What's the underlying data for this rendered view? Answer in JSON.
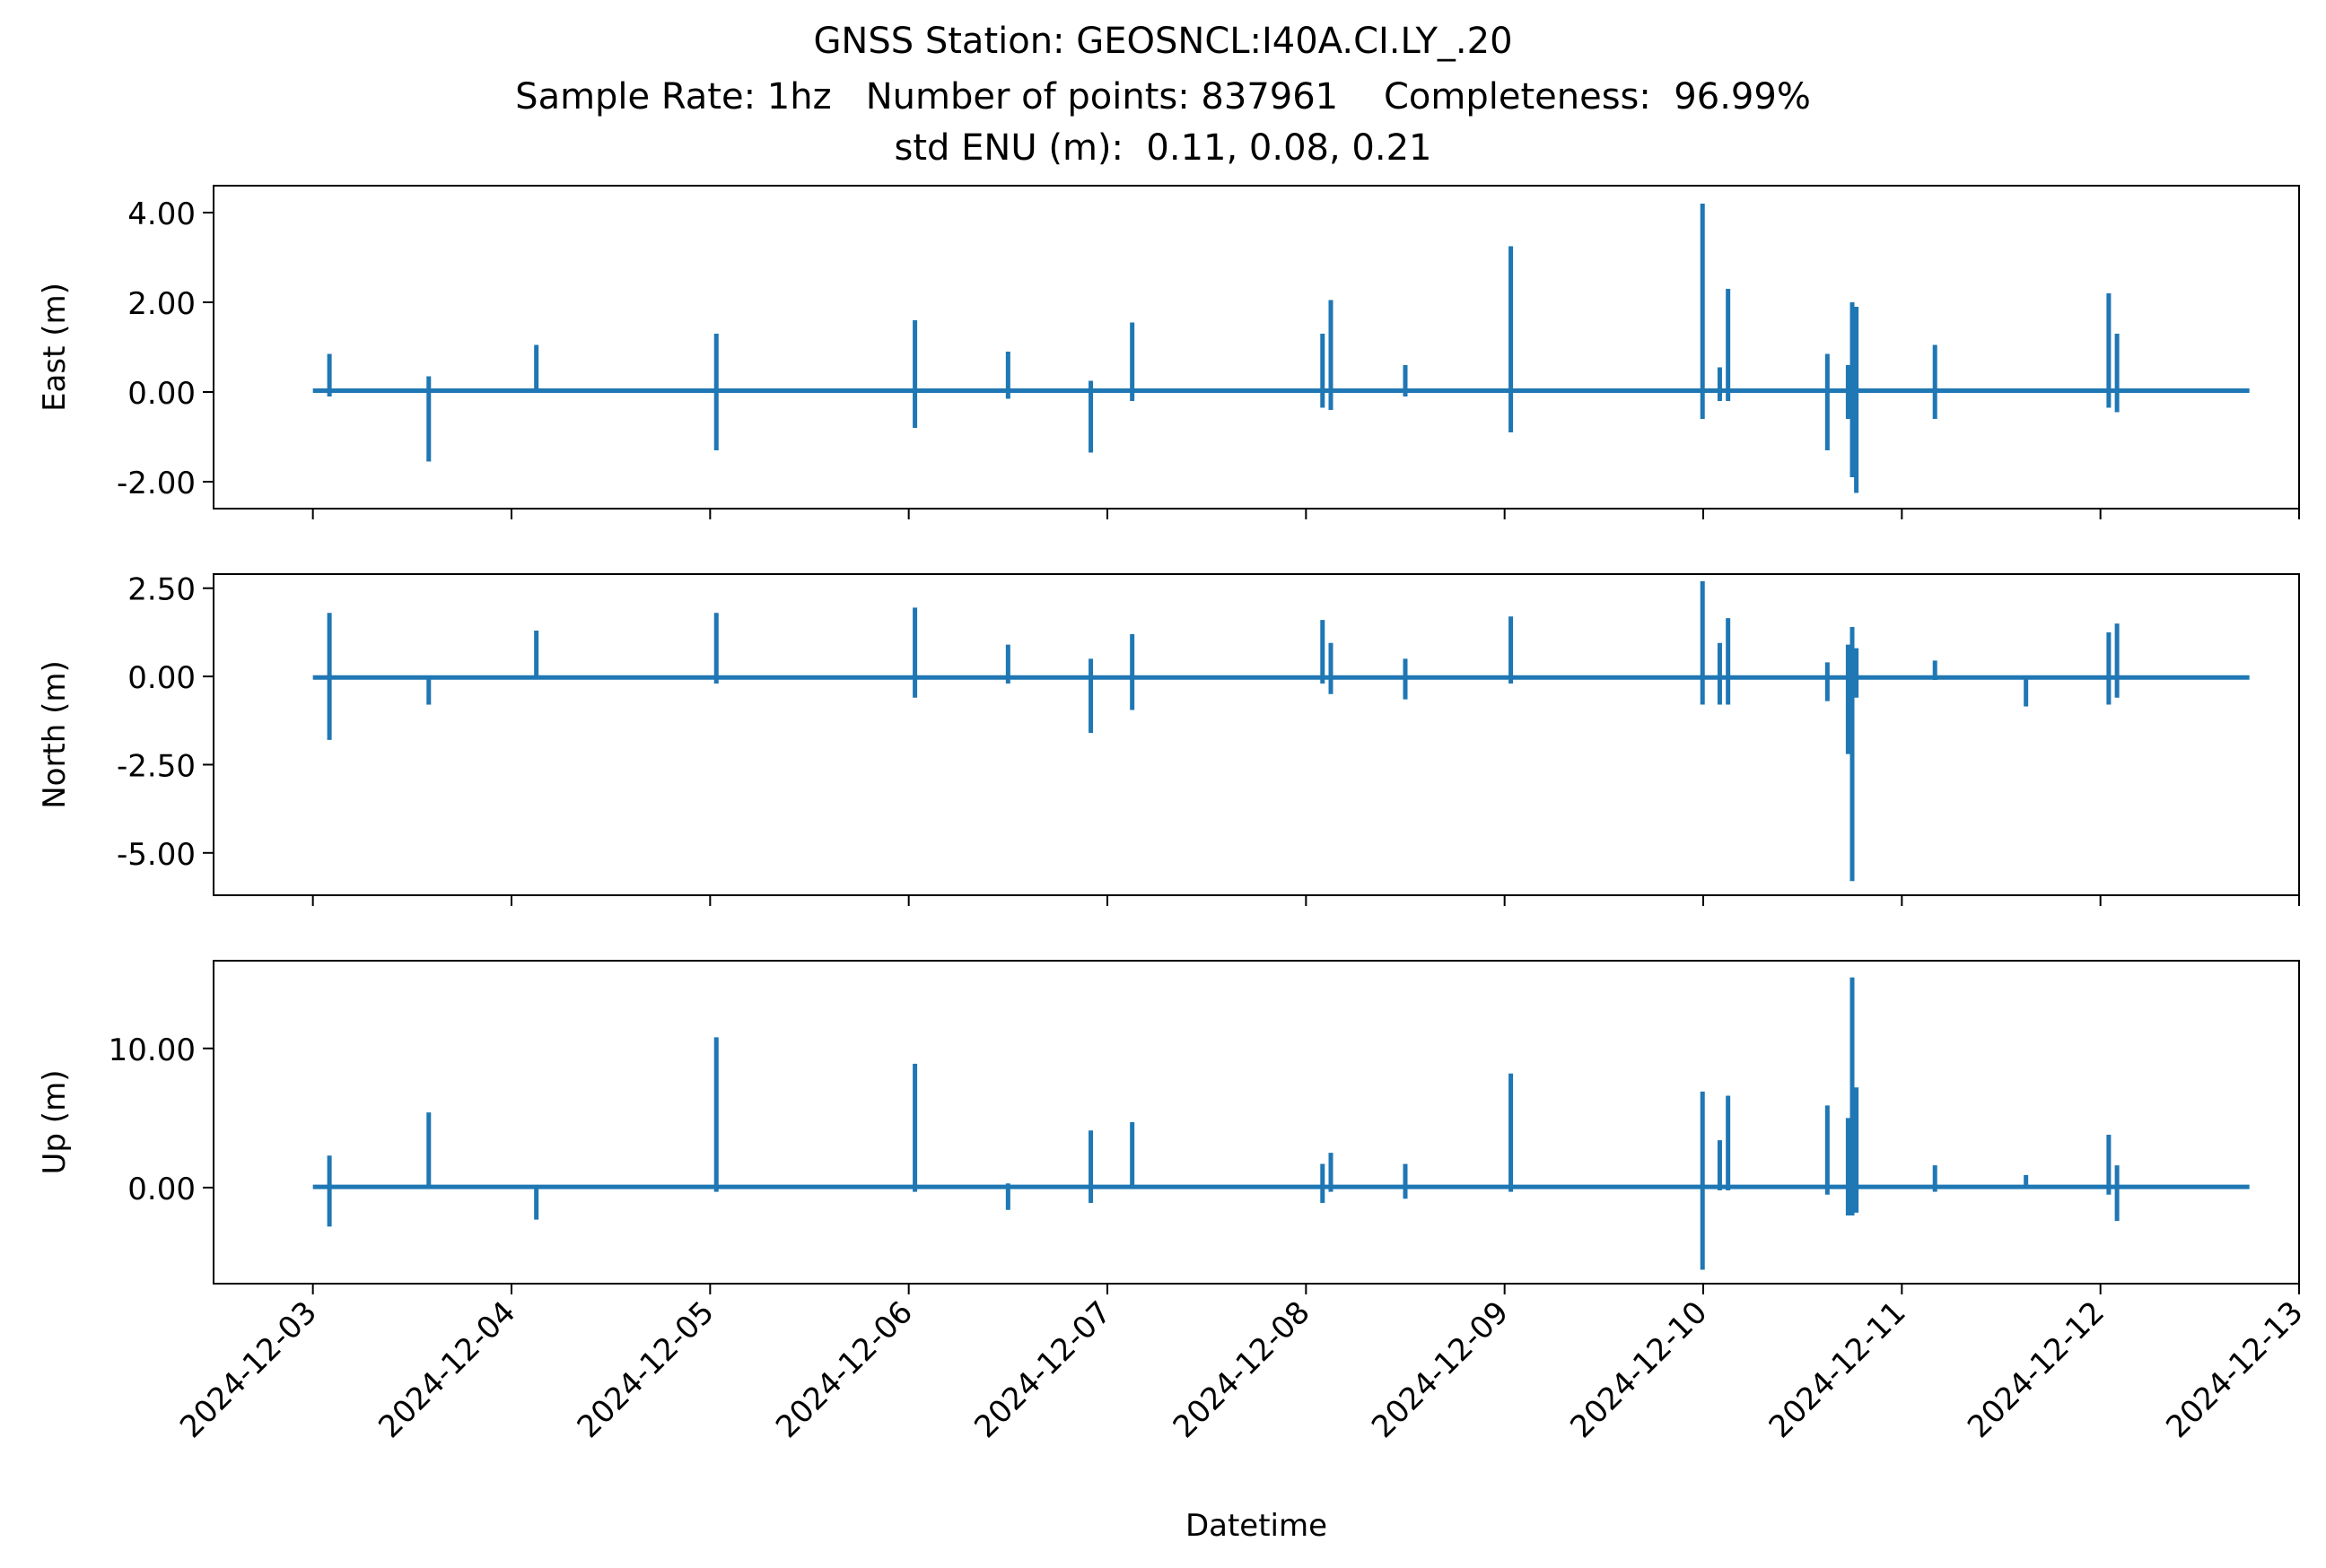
{
  "title": {
    "line1": "GNSS Station: GEOSNCL:I40A.CI.LY_.20",
    "line2": "Sample Rate: 1hz   Number of points: 837961    Completeness:  96.99%",
    "line3": "std ENU (m):  0.11, 0.08, 0.21"
  },
  "colors": {
    "series": "#1f77b4",
    "axes": "#000000",
    "background": "#ffffff"
  },
  "chart_data": [
    {
      "type": "line",
      "ylabel": "East (m)",
      "xlabel": "",
      "xlim": [
        "2024-12-02T12:00",
        "2024-12-13T00:00"
      ],
      "ylim": [
        -2.6,
        4.6
      ],
      "yticks": [
        4.0,
        2.0,
        0.0,
        -2.0
      ],
      "ytick_labels": [
        "4.00",
        "2.00",
        "0.00",
        "-2.00"
      ],
      "xticks": [
        "2024-12-03",
        "2024-12-04",
        "2024-12-05",
        "2024-12-06",
        "2024-12-07",
        "2024-12-08",
        "2024-12-09",
        "2024-12-10",
        "2024-12-11",
        "2024-12-12",
        "2024-12-13"
      ],
      "xtick_labels_shown": false,
      "baseline": 0.03,
      "time_start": "2024-12-03T00:00",
      "time_end": "2024-12-12T18:00",
      "spikes": [
        {
          "t": "2024-12-03T02:00",
          "min": -0.1,
          "max": 0.85
        },
        {
          "t": "2024-12-03T14:00",
          "min": -1.55,
          "max": 0.35
        },
        {
          "t": "2024-12-04T03:00",
          "min": 0.0,
          "max": 1.05
        },
        {
          "t": "2024-12-05T00:45",
          "min": -1.3,
          "max": 1.3
        },
        {
          "t": "2024-12-06T00:45",
          "min": -0.8,
          "max": 1.6
        },
        {
          "t": "2024-12-06T12:00",
          "min": -0.15,
          "max": 0.9
        },
        {
          "t": "2024-12-06T22:00",
          "min": -1.35,
          "max": 0.25
        },
        {
          "t": "2024-12-07T03:00",
          "min": -0.2,
          "max": 1.55
        },
        {
          "t": "2024-12-08T02:00",
          "min": -0.35,
          "max": 1.3
        },
        {
          "t": "2024-12-08T03:00",
          "min": -0.4,
          "max": 2.05
        },
        {
          "t": "2024-12-08T12:00",
          "min": -0.1,
          "max": 0.6
        },
        {
          "t": "2024-12-09T00:45",
          "min": -0.9,
          "max": 3.25
        },
        {
          "t": "2024-12-09T23:55",
          "min": -0.6,
          "max": 4.2
        },
        {
          "t": "2024-12-10T02:00",
          "min": -0.2,
          "max": 0.55
        },
        {
          "t": "2024-12-10T03:00",
          "min": -0.2,
          "max": 2.3
        },
        {
          "t": "2024-12-10T15:00",
          "min": -1.3,
          "max": 0.85
        },
        {
          "t": "2024-12-10T17:30",
          "min": -0.6,
          "max": 0.6
        },
        {
          "t": "2024-12-10T18:00",
          "min": -1.9,
          "max": 2.0
        },
        {
          "t": "2024-12-10T18:30",
          "min": -2.25,
          "max": 1.9
        },
        {
          "t": "2024-12-11T04:00",
          "min": -0.6,
          "max": 1.05
        },
        {
          "t": "2024-12-12T01:00",
          "min": -0.35,
          "max": 2.2
        },
        {
          "t": "2024-12-12T02:00",
          "min": -0.45,
          "max": 1.3
        }
      ]
    },
    {
      "type": "line",
      "ylabel": "North (m)",
      "xlabel": "",
      "xlim": [
        "2024-12-02T12:00",
        "2024-12-13T00:00"
      ],
      "ylim": [
        -6.2,
        2.9
      ],
      "yticks": [
        2.5,
        0.0,
        -2.5,
        -5.0
      ],
      "ytick_labels": [
        "2.50",
        "0.00",
        "-2.50",
        "-5.00"
      ],
      "xticks": [
        "2024-12-03",
        "2024-12-04",
        "2024-12-05",
        "2024-12-06",
        "2024-12-07",
        "2024-12-08",
        "2024-12-09",
        "2024-12-10",
        "2024-12-11",
        "2024-12-12",
        "2024-12-13"
      ],
      "xtick_labels_shown": false,
      "baseline": -0.03,
      "time_start": "2024-12-03T00:00",
      "time_end": "2024-12-12T18:00",
      "spikes": [
        {
          "t": "2024-12-03T02:00",
          "min": -1.8,
          "max": 1.8
        },
        {
          "t": "2024-12-03T14:00",
          "min": -0.8,
          "max": 0.0
        },
        {
          "t": "2024-12-04T03:00",
          "min": 0.0,
          "max": 1.3
        },
        {
          "t": "2024-12-05T00:45",
          "min": -0.2,
          "max": 1.8
        },
        {
          "t": "2024-12-06T00:45",
          "min": -0.6,
          "max": 1.95
        },
        {
          "t": "2024-12-06T12:00",
          "min": -0.2,
          "max": 0.9
        },
        {
          "t": "2024-12-06T22:00",
          "min": -1.6,
          "max": 0.5
        },
        {
          "t": "2024-12-07T03:00",
          "min": -0.95,
          "max": 1.2
        },
        {
          "t": "2024-12-08T02:00",
          "min": -0.2,
          "max": 1.6
        },
        {
          "t": "2024-12-08T03:00",
          "min": -0.5,
          "max": 0.95
        },
        {
          "t": "2024-12-08T12:00",
          "min": -0.65,
          "max": 0.5
        },
        {
          "t": "2024-12-09T00:45",
          "min": -0.2,
          "max": 1.7
        },
        {
          "t": "2024-12-09T23:55",
          "min": -0.8,
          "max": 2.7
        },
        {
          "t": "2024-12-10T02:00",
          "min": -0.8,
          "max": 0.95
        },
        {
          "t": "2024-12-10T03:00",
          "min": -0.8,
          "max": 1.65
        },
        {
          "t": "2024-12-10T15:00",
          "min": -0.7,
          "max": 0.4
        },
        {
          "t": "2024-12-10T17:30",
          "min": -2.2,
          "max": 0.9
        },
        {
          "t": "2024-12-10T18:00",
          "min": -5.8,
          "max": 1.4
        },
        {
          "t": "2024-12-10T18:30",
          "min": -0.6,
          "max": 0.8
        },
        {
          "t": "2024-12-11T04:00",
          "min": -0.1,
          "max": 0.45
        },
        {
          "t": "2024-12-11T15:00",
          "min": -0.85,
          "max": 0.0
        },
        {
          "t": "2024-12-12T01:00",
          "min": -0.8,
          "max": 1.25
        },
        {
          "t": "2024-12-12T02:00",
          "min": -0.6,
          "max": 1.5
        }
      ]
    },
    {
      "type": "line",
      "ylabel": "Up (m)",
      "xlabel": "Datetime",
      "xlim": [
        "2024-12-02T12:00",
        "2024-12-13T00:00"
      ],
      "ylim": [
        -6.9,
        16.3
      ],
      "yticks": [
        10.0,
        0.0
      ],
      "ytick_labels": [
        "10.00",
        "0.00"
      ],
      "xticks": [
        "2024-12-03",
        "2024-12-04",
        "2024-12-05",
        "2024-12-06",
        "2024-12-07",
        "2024-12-08",
        "2024-12-09",
        "2024-12-10",
        "2024-12-11",
        "2024-12-12",
        "2024-12-13"
      ],
      "xtick_labels": [
        "2024-12-03",
        "2024-12-04",
        "2024-12-05",
        "2024-12-06",
        "2024-12-07",
        "2024-12-08",
        "2024-12-09",
        "2024-12-10",
        "2024-12-11",
        "2024-12-12",
        "2024-12-13"
      ],
      "xtick_labels_shown": true,
      "baseline": 0.05,
      "time_start": "2024-12-03T00:00",
      "time_end": "2024-12-12T18:00",
      "spikes": [
        {
          "t": "2024-12-03T02:00",
          "min": -2.8,
          "max": 2.3
        },
        {
          "t": "2024-12-03T14:00",
          "min": 0.0,
          "max": 5.4
        },
        {
          "t": "2024-12-04T03:00",
          "min": -2.3,
          "max": 0.0
        },
        {
          "t": "2024-12-05T00:45",
          "min": -0.3,
          "max": 10.8
        },
        {
          "t": "2024-12-06T00:45",
          "min": -0.3,
          "max": 8.9
        },
        {
          "t": "2024-12-06T12:00",
          "min": -1.6,
          "max": 0.3
        },
        {
          "t": "2024-12-06T22:00",
          "min": -1.1,
          "max": 4.1
        },
        {
          "t": "2024-12-07T03:00",
          "min": -0.1,
          "max": 4.7
        },
        {
          "t": "2024-12-08T02:00",
          "min": -1.1,
          "max": 1.7
        },
        {
          "t": "2024-12-08T03:00",
          "min": -0.3,
          "max": 2.5
        },
        {
          "t": "2024-12-08T12:00",
          "min": -0.8,
          "max": 1.7
        },
        {
          "t": "2024-12-09T00:45",
          "min": -0.3,
          "max": 8.2
        },
        {
          "t": "2024-12-09T23:55",
          "min": -5.9,
          "max": 6.9
        },
        {
          "t": "2024-12-10T02:00",
          "min": -0.2,
          "max": 3.4
        },
        {
          "t": "2024-12-10T03:00",
          "min": -0.2,
          "max": 6.6
        },
        {
          "t": "2024-12-10T15:00",
          "min": -0.5,
          "max": 5.9
        },
        {
          "t": "2024-12-10T17:30",
          "min": -2.0,
          "max": 5.0
        },
        {
          "t": "2024-12-10T18:00",
          "min": -2.0,
          "max": 15.1
        },
        {
          "t": "2024-12-10T18:30",
          "min": -1.8,
          "max": 7.2
        },
        {
          "t": "2024-12-11T04:00",
          "min": -0.3,
          "max": 1.6
        },
        {
          "t": "2024-12-11T15:00",
          "min": 0.0,
          "max": 0.9
        },
        {
          "t": "2024-12-12T01:00",
          "min": -0.5,
          "max": 3.8
        },
        {
          "t": "2024-12-12T02:00",
          "min": -2.4,
          "max": 1.6
        }
      ]
    }
  ]
}
